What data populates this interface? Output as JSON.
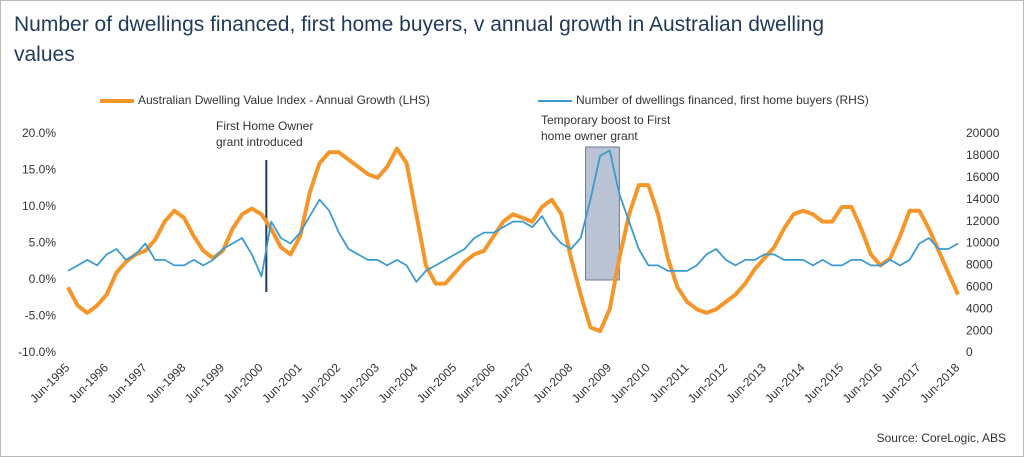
{
  "chart_data": {
    "type": "line",
    "title": "Number of dwellings financed, first home buyers, v annual growth in Australian dwelling values",
    "source": "Source: CoreLogic, ABS",
    "categories": [
      "Jun-1995",
      null,
      null,
      null,
      "Jun-1996",
      null,
      null,
      null,
      "Jun-1997",
      null,
      null,
      null,
      "Jun-1998",
      null,
      null,
      null,
      "Jun-1999",
      null,
      null,
      null,
      "Jun-2000",
      null,
      null,
      null,
      "Jun-2001",
      null,
      null,
      null,
      "Jun-2002",
      null,
      null,
      null,
      "Jun-2003",
      null,
      null,
      null,
      "Jun-2004",
      null,
      null,
      null,
      "Jun-2005",
      null,
      null,
      null,
      "Jun-2006",
      null,
      null,
      null,
      "Jun-2007",
      null,
      null,
      null,
      "Jun-2008",
      null,
      null,
      null,
      "Jun-2009",
      null,
      null,
      null,
      "Jun-2010",
      null,
      null,
      null,
      "Jun-2011",
      null,
      null,
      null,
      "Jun-2012",
      null,
      null,
      null,
      "Jun-2013",
      null,
      null,
      null,
      "Jun-2014",
      null,
      null,
      null,
      "Jun-2015",
      null,
      null,
      null,
      "Jun-2016",
      null,
      null,
      null,
      "Jun-2017",
      null,
      null,
      null,
      "Jun-2018"
    ],
    "series": [
      {
        "name": "Australian Dwelling Value Index - Annual Growth (LHS)",
        "color": "#f5962a",
        "axis": "y",
        "values": [
          -1,
          -3.5,
          -4.5,
          -3.5,
          -2,
          1,
          2.5,
          3.5,
          4,
          5.5,
          8,
          9.5,
          8.5,
          6,
          4,
          3,
          4,
          7,
          9,
          9.8,
          9,
          7,
          4.5,
          3.5,
          6,
          12,
          16,
          17.5,
          17.5,
          16.5,
          15.5,
          14.5,
          14,
          15.5,
          18,
          16,
          9,
          2,
          -0.5,
          -0.5,
          1,
          2.5,
          3.5,
          4,
          6,
          8,
          9,
          8.5,
          8,
          10,
          11,
          9,
          3,
          -2,
          -6.5,
          -7,
          -4,
          3,
          9,
          13,
          13,
          9,
          3,
          -1,
          -3,
          -4,
          -4.5,
          -4,
          -3,
          -2,
          -0.5,
          1.5,
          3,
          4.5,
          7,
          9,
          9.5,
          9,
          8,
          8,
          10,
          10,
          7,
          3.5,
          2,
          3,
          6,
          9.5,
          9.5,
          7,
          4,
          1,
          -2
        ]
      },
      {
        "name": "Number of dwellings financed, first home buyers (RHS)",
        "color": "#3b9bd1",
        "axis": "y2",
        "values": [
          7500,
          8000,
          8500,
          8000,
          9000,
          9500,
          8500,
          9000,
          10000,
          8500,
          8500,
          8000,
          8000,
          8500,
          8000,
          8500,
          9500,
          10000,
          10500,
          9000,
          7000,
          12000,
          10500,
          10000,
          11000,
          12500,
          14000,
          13000,
          11000,
          9500,
          9000,
          8500,
          8500,
          8000,
          8500,
          8000,
          6500,
          7500,
          8000,
          8500,
          9000,
          9500,
          10500,
          11000,
          11000,
          11500,
          12000,
          12000,
          11500,
          12500,
          11000,
          10000,
          9500,
          10500,
          14000,
          18000,
          18500,
          14500,
          12000,
          9500,
          8000,
          8000,
          7500,
          7500,
          7500,
          8000,
          9000,
          9500,
          8500,
          8000,
          8500,
          8500,
          9000,
          9000,
          8500,
          8500,
          8500,
          8000,
          8500,
          8000,
          8000,
          8500,
          8500,
          8000,
          8000,
          8500,
          8000,
          8500,
          10000,
          10500,
          9500,
          9500,
          10000
        ]
      }
    ],
    "ylim": [
      -10,
      20
    ],
    "yticks": [
      {
        "value": -10,
        "label": "-10.0%"
      },
      {
        "value": -5,
        "label": "-5.0%"
      },
      {
        "value": 0,
        "label": "0.0%"
      },
      {
        "value": 5,
        "label": "5.0%"
      },
      {
        "value": 10,
        "label": "10.0%"
      },
      {
        "value": 15,
        "label": "15.0%"
      },
      {
        "value": 20,
        "label": "20.0%"
      }
    ],
    "y2lim": [
      0,
      20000
    ],
    "y2ticks": [
      0,
      2000,
      4000,
      6000,
      8000,
      10000,
      12000,
      14000,
      16000,
      18000,
      20000
    ],
    "annotations": [
      {
        "lines": [
          "First Home Owner",
          "grant introduced"
        ]
      },
      {
        "lines": [
          "Temporary boost to First",
          "home owner grant"
        ]
      }
    ]
  }
}
